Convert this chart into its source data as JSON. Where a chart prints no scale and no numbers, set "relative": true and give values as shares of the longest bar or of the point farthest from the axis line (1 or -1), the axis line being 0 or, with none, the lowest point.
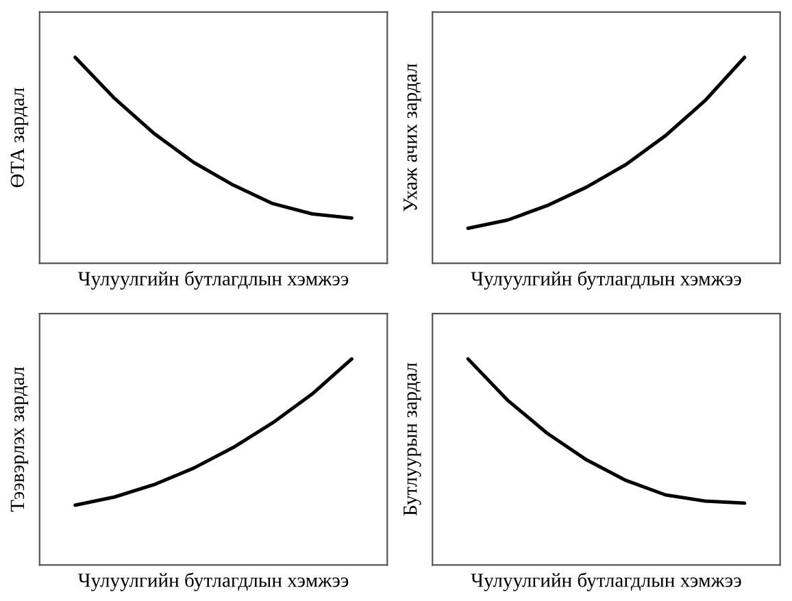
{
  "chart_data": [
    {
      "type": "line",
      "relative": true,
      "tick_labels": false,
      "xlabel": "Чулуулгийн бутлагдлын хэмжээ",
      "ylabel": "ӨТА зардал",
      "categories": [
        null,
        null,
        null,
        null,
        null,
        null,
        null,
        null
      ],
      "series": [
        {
          "color": "#000000",
          "values": [
            1.0,
            0.8,
            0.63,
            0.49,
            0.38,
            0.29,
            0.24,
            0.22
          ]
        }
      ]
    },
    {
      "type": "line",
      "relative": true,
      "tick_labels": false,
      "xlabel": "Чулуулгийн бутлагдлын хэмжээ",
      "ylabel": "Ухаж ачих зардал",
      "categories": [
        null,
        null,
        null,
        null,
        null,
        null,
        null,
        null
      ],
      "series": [
        {
          "color": "#000000",
          "values": [
            0.17,
            0.21,
            0.28,
            0.37,
            0.48,
            0.62,
            0.79,
            1.0
          ]
        }
      ]
    },
    {
      "type": "line",
      "relative": true,
      "tick_labels": false,
      "xlabel": "Чулуулгийн бутлагдлын хэмжээ",
      "ylabel": "Тээвэрлэх зардал",
      "categories": [
        null,
        null,
        null,
        null,
        null,
        null,
        null,
        null
      ],
      "series": [
        {
          "color": "#000000",
          "values": [
            0.29,
            0.33,
            0.39,
            0.47,
            0.57,
            0.69,
            0.83,
            1.0
          ]
        }
      ]
    },
    {
      "type": "line",
      "relative": true,
      "tick_labels": false,
      "xlabel": "Чулуулгийн бутлагдлын хэмжээ",
      "ylabel": "Бутлуурын зардал",
      "categories": [
        null,
        null,
        null,
        null,
        null,
        null,
        null,
        null
      ],
      "series": [
        {
          "color": "#000000",
          "values": [
            1.0,
            0.8,
            0.64,
            0.51,
            0.41,
            0.34,
            0.31,
            0.3
          ]
        }
      ]
    }
  ]
}
